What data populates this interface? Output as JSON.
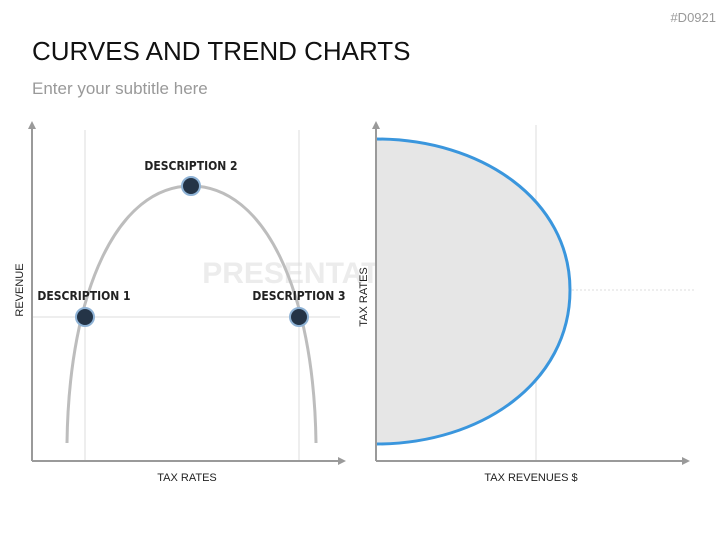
{
  "header": {
    "code": "#D0921",
    "title": "CURVES AND TREND CHARTS",
    "subtitle": "Enter your subtitle here"
  },
  "watermark": "PRESENTATIONLOAD",
  "left_diagram": {
    "y_axis_label": "REVENUE",
    "x_axis_label": "TAX RATES",
    "points": [
      {
        "label": "DESCRIPTION 1"
      },
      {
        "label": "DESCRIPTION 2"
      },
      {
        "label": "DESCRIPTION 3"
      }
    ]
  },
  "right_diagram": {
    "y_axis_label": "TAX RATES",
    "x_axis_label": "TAX REVENUES $"
  }
}
